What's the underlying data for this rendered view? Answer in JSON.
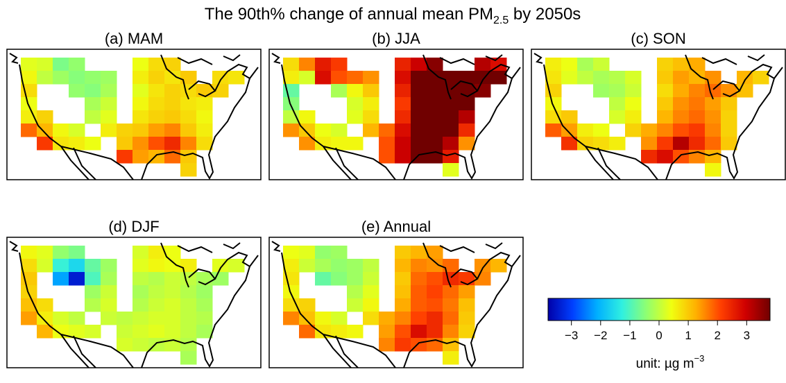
{
  "chart_data": {
    "type": "heatmap-maps",
    "title": {
      "text": "The 90th% change of annual mean PM",
      "subscript": "2.5",
      "suffix": " by 2050s"
    },
    "clim": [
      -3.8,
      3.8
    ],
    "colormap": [
      "#0000a8",
      "#0040ff",
      "#00b0ff",
      "#30f0e0",
      "#90ff70",
      "#f0ff10",
      "#ffb000",
      "#ff4000",
      "#d00000",
      "#700000"
    ],
    "cticks": [
      {
        "value": -3,
        "label": "−3"
      },
      {
        "value": -2,
        "label": "−2"
      },
      {
        "value": -1,
        "label": "−1"
      },
      0,
      1,
      2,
      3
    ],
    "unit": {
      "text": "unit:  µg m",
      "superscript": "−3"
    },
    "panels": [
      {
        "title": "(a) MAM",
        "values": [
          [
            0.3,
            0.2,
            -0.6,
            -0.4,
            null,
            null,
            null,
            0.4,
            0.8,
            0.9,
            null,
            null,
            null,
            null
          ],
          [
            0.5,
            0.0,
            -0.3,
            -0.5,
            -0.4,
            -0.3,
            null,
            0.6,
            0.9,
            0.7,
            1.0,
            null,
            0.8,
            0.7
          ],
          [
            0.8,
            null,
            null,
            -0.4,
            -0.5,
            -0.2,
            null,
            0.3,
            0.7,
            0.9,
            0.8,
            1.0,
            0.9,
            null
          ],
          [
            0.4,
            null,
            null,
            null,
            -0.2,
            0.1,
            null,
            0.5,
            0.8,
            0.9,
            0.7,
            0.6,
            null,
            null
          ],
          [
            0.6,
            0.9,
            null,
            null,
            0.0,
            0.3,
            null,
            0.7,
            0.9,
            1.0,
            0.8,
            0.5,
            null,
            null
          ],
          [
            1.8,
            1.2,
            0.5,
            0.2,
            null,
            0.6,
            0.9,
            1.0,
            1.4,
            1.6,
            1.0,
            0.6,
            null,
            null
          ],
          [
            null,
            2.2,
            0.7,
            0.6,
            0.4,
            null,
            1.0,
            1.5,
            2.0,
            2.4,
            1.6,
            0.8,
            null,
            null
          ],
          [
            null,
            null,
            null,
            null,
            null,
            null,
            2.2,
            1.4,
            1.2,
            1.8,
            1.0,
            null,
            null,
            null
          ],
          [
            null,
            null,
            null,
            null,
            null,
            null,
            null,
            null,
            null,
            null,
            0.9,
            null,
            null,
            null
          ]
        ]
      },
      {
        "title": "(b) JJA",
        "values": [
          [
            0.8,
            1.6,
            2.6,
            2.2,
            null,
            null,
            null,
            2.5,
            3.0,
            3.6,
            null,
            null,
            3.2,
            2.8
          ],
          [
            0.6,
            0.2,
            2.8,
            2.0,
            1.8,
            1.5,
            null,
            2.8,
            3.8,
            3.8,
            3.8,
            3.8,
            3.8,
            3.8
          ],
          [
            -0.8,
            null,
            null,
            -0.2,
            0.5,
            1.0,
            null,
            2.5,
            3.8,
            3.8,
            3.8,
            3.8,
            3.6,
            null
          ],
          [
            -0.5,
            null,
            null,
            null,
            0.2,
            0.6,
            null,
            2.2,
            3.8,
            3.8,
            3.8,
            3.8,
            null,
            null
          ],
          [
            0.0,
            0.5,
            null,
            null,
            0.3,
            0.8,
            null,
            2.4,
            3.8,
            3.8,
            3.8,
            3.2,
            null,
            null
          ],
          [
            1.5,
            1.0,
            0.4,
            0.2,
            null,
            1.2,
            1.8,
            2.8,
            3.8,
            3.8,
            3.8,
            2.4,
            null,
            null
          ],
          [
            null,
            1.5,
            0.6,
            0.5,
            0.5,
            null,
            2.0,
            3.0,
            3.8,
            3.8,
            3.2,
            1.5,
            null,
            null
          ],
          [
            null,
            null,
            null,
            null,
            null,
            null,
            2.0,
            3.0,
            3.8,
            3.8,
            2.6,
            null,
            null,
            null
          ],
          [
            null,
            null,
            null,
            null,
            null,
            null,
            null,
            null,
            null,
            null,
            0.3,
            null,
            null,
            null
          ]
        ]
      },
      {
        "title": "(c) SON",
        "values": [
          [
            0.6,
            0.4,
            -0.2,
            0.1,
            null,
            null,
            null,
            0.9,
            1.1,
            1.3,
            null,
            null,
            null,
            null
          ],
          [
            0.7,
            0.3,
            0.0,
            -0.2,
            -0.1,
            0.2,
            null,
            1.0,
            1.4,
            1.2,
            1.5,
            null,
            1.2,
            0.9
          ],
          [
            0.9,
            null,
            null,
            -0.3,
            -0.2,
            0.1,
            null,
            0.8,
            1.3,
            1.6,
            1.8,
            1.5,
            1.1,
            null
          ],
          [
            0.5,
            null,
            null,
            null,
            0.0,
            0.4,
            null,
            1.0,
            1.5,
            1.7,
            1.4,
            1.0,
            null,
            null
          ],
          [
            0.8,
            1.0,
            null,
            null,
            0.2,
            0.6,
            null,
            1.2,
            1.6,
            1.8,
            1.5,
            0.9,
            null,
            null
          ],
          [
            1.9,
            1.4,
            0.6,
            0.4,
            null,
            0.9,
            1.3,
            1.6,
            2.0,
            2.2,
            1.6,
            0.9,
            null,
            null
          ],
          [
            null,
            2.3,
            0.9,
            0.8,
            0.6,
            null,
            1.5,
            2.2,
            3.2,
            2.4,
            1.8,
            1.0,
            null,
            null
          ],
          [
            null,
            null,
            null,
            null,
            null,
            null,
            2.4,
            2.8,
            2.0,
            1.6,
            1.2,
            null,
            null,
            null
          ],
          [
            null,
            null,
            null,
            null,
            null,
            null,
            null,
            null,
            null,
            null,
            0.5,
            null,
            null,
            null
          ]
        ]
      },
      {
        "title": "(d) DJF",
        "values": [
          [
            0.5,
            0.3,
            -0.4,
            -0.6,
            null,
            null,
            null,
            0.2,
            0.6,
            0.4,
            null,
            null,
            null,
            null
          ],
          [
            0.8,
            0.2,
            -1.2,
            -1.6,
            -0.8,
            -0.3,
            null,
            0.3,
            0.5,
            0.4,
            0.6,
            null,
            0.3,
            0.2
          ],
          [
            1.0,
            null,
            -2.2,
            -3.4,
            -1.0,
            -0.2,
            null,
            0.0,
            -0.1,
            0.1,
            0.0,
            -0.2,
            -0.3,
            null
          ],
          [
            0.9,
            null,
            null,
            null,
            -0.3,
            0.1,
            null,
            -0.2,
            0.0,
            0.1,
            -0.1,
            -0.3,
            null,
            null
          ],
          [
            1.1,
            0.8,
            null,
            null,
            -0.1,
            0.2,
            null,
            -0.1,
            0.1,
            0.2,
            0.0,
            -0.2,
            null,
            null
          ],
          [
            1.4,
            0.6,
            0.2,
            0.0,
            null,
            0.1,
            0.0,
            0.1,
            0.2,
            0.2,
            0.0,
            -0.1,
            null,
            null
          ],
          [
            null,
            1.2,
            0.4,
            0.3,
            0.2,
            null,
            0.1,
            0.2,
            0.3,
            0.2,
            0.0,
            -0.2,
            null,
            null
          ],
          [
            null,
            null,
            null,
            null,
            null,
            null,
            0.2,
            0.1,
            0.0,
            0.1,
            -0.1,
            null,
            null,
            null
          ],
          [
            null,
            null,
            null,
            null,
            null,
            null,
            null,
            null,
            null,
            null,
            -0.2,
            null,
            null,
            null
          ]
        ]
      },
      {
        "title": "(e) Annual",
        "values": [
          [
            0.4,
            0.3,
            -0.4,
            -0.3,
            null,
            null,
            null,
            1.0,
            1.2,
            1.4,
            null,
            null,
            null,
            null
          ],
          [
            0.6,
            0.1,
            -0.2,
            -0.4,
            -0.3,
            0.0,
            null,
            1.2,
            1.6,
            1.5,
            1.8,
            null,
            1.5,
            1.2
          ],
          [
            0.7,
            null,
            -0.8,
            -0.5,
            -0.3,
            0.1,
            null,
            1.0,
            1.8,
            2.0,
            2.4,
            2.2,
            1.6,
            null
          ],
          [
            0.5,
            null,
            null,
            null,
            -0.1,
            0.3,
            null,
            1.1,
            1.9,
            2.1,
            1.8,
            1.4,
            null,
            null
          ],
          [
            0.8,
            0.9,
            null,
            null,
            0.1,
            0.5,
            null,
            1.3,
            1.9,
            2.0,
            1.7,
            1.1,
            null,
            null
          ],
          [
            1.6,
            1.1,
            0.5,
            0.2,
            null,
            0.8,
            1.3,
            1.6,
            2.1,
            2.4,
            1.8,
            1.0,
            null,
            null
          ],
          [
            null,
            1.8,
            0.7,
            0.6,
            0.5,
            null,
            1.4,
            2.0,
            2.8,
            2.4,
            1.6,
            0.9,
            null,
            null
          ],
          [
            null,
            null,
            null,
            null,
            null,
            null,
            1.6,
            2.2,
            2.0,
            1.8,
            1.1,
            null,
            null,
            null
          ],
          [
            null,
            null,
            null,
            null,
            null,
            null,
            null,
            null,
            null,
            null,
            0.6,
            null,
            null,
            null
          ]
        ]
      }
    ]
  }
}
